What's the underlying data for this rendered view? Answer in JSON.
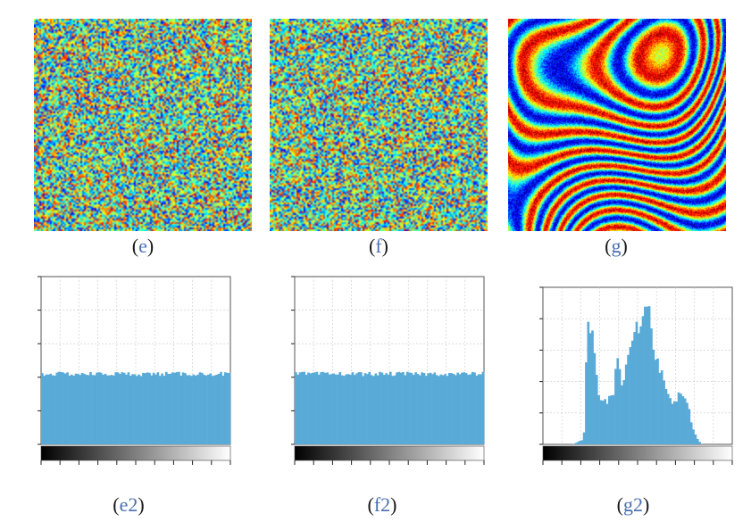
{
  "panels": [
    {
      "id": "e",
      "caption_letter": "e",
      "image_kind": "uniform-noise"
    },
    {
      "id": "f",
      "caption_letter": "f",
      "image_kind": "uniform-noise"
    },
    {
      "id": "g",
      "caption_letter": "g",
      "image_kind": "fringe-pattern"
    }
  ],
  "histograms": [
    {
      "id": "e2",
      "caption_letter": "e2"
    },
    {
      "id": "f2",
      "caption_letter": "f2"
    },
    {
      "id": "g2",
      "caption_letter": "g2"
    }
  ],
  "colors": {
    "bar": "#5aaad8",
    "caption_letter": "#4a6fb0",
    "grid": "#c8c8c8"
  },
  "chart_data": [
    {
      "type": "bar",
      "id": "e2",
      "title": "",
      "xlabel": "",
      "ylabel": "",
      "xlim": [
        0,
        255
      ],
      "ylim": [
        0,
        5
      ],
      "grid": true,
      "colorbar": "grayscale",
      "profile": "flat",
      "values": [
        2.1
      ]
    },
    {
      "type": "bar",
      "id": "f2",
      "title": "",
      "xlabel": "",
      "ylabel": "",
      "xlim": [
        0,
        255
      ],
      "ylim": [
        0,
        5
      ],
      "grid": true,
      "colorbar": "grayscale",
      "profile": "flat",
      "values": [
        2.1
      ]
    },
    {
      "type": "bar",
      "id": "g2",
      "title": "",
      "xlabel": "",
      "ylabel": "",
      "xlim": [
        0,
        255
      ],
      "ylim": [
        0,
        6
      ],
      "grid": true,
      "colorbar": "grayscale",
      "profile": "peaks",
      "x": [
        0,
        40,
        55,
        60,
        66,
        75,
        85,
        95,
        100,
        106,
        112,
        120,
        126,
        130,
        136,
        142,
        150,
        158,
        166,
        172,
        178,
        184,
        190,
        196,
        202,
        208,
        214,
        222,
        232,
        240,
        255
      ],
      "values": [
        0,
        0,
        0.2,
        4.8,
        4.3,
        1.8,
        1.6,
        2.0,
        3.6,
        2.2,
        2.9,
        4.0,
        4.9,
        3.9,
        5.2,
        5.4,
        3.5,
        2.8,
        2.2,
        1.6,
        1.6,
        2.0,
        1.8,
        1.4,
        0.6,
        0.2,
        0,
        0,
        0,
        0,
        0
      ]
    }
  ]
}
